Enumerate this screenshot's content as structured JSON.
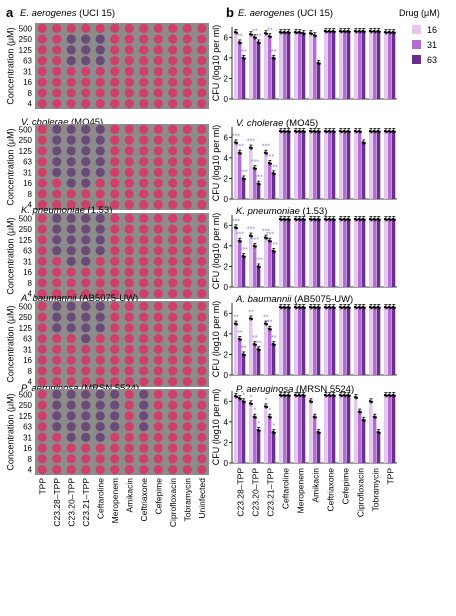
{
  "panel_a_label": "a",
  "panel_b_label": "b",
  "plates": {
    "y_axis_label": "Concentration (μM)",
    "row_labels": [
      "500",
      "250",
      "125",
      "63",
      "31",
      "16",
      "8",
      "4"
    ],
    "column_labels": [
      "TPP",
      "C23.28–TPP",
      "C23.20–TPP",
      "C23.21–TPP",
      "Ceftaroline",
      "Meropenem",
      "Amikacin",
      "Ceftriaxone",
      "Cefepime",
      "Ciprofloxacin",
      "Tobramycin",
      "Uninfected"
    ],
    "colors": {
      "pink": "#cf3f6a",
      "purple": "#6a4a76",
      "plate_bg": "#8e8b8d"
    },
    "panels": [
      {
        "species": "E. aerogenes",
        "strain": "(UCI 15)",
        "grid": [
          "pppppppppppp",
          "ppuuuppppppp",
          "ppuuuppppppp",
          "ppuuuppppppp",
          "pppppppppppp",
          "pppppppppppp",
          "pppppppppppp",
          "pppppppppppp"
        ]
      },
      {
        "species": "V. cholerae",
        "strain": "(MO45)",
        "grid": [
          "puuuuppppppp",
          "puuuuppppppp",
          "puuuuppppppp",
          "puuuuppppppp",
          "puuuuppppppp",
          "ppuupppppppp",
          "pppppppppppp",
          "pppppppppppp"
        ]
      },
      {
        "species": "K. pneumoniae",
        "strain": "(1.53)",
        "grid": [
          "puuuuppppppp",
          "puuuuppppppp",
          "puuuuppppppp",
          "puuuuppppppp",
          "ppuupppppppp",
          "pppppppppppp",
          "pppppppppppp",
          "pppppppppppp"
        ]
      },
      {
        "species": "A. baumannii",
        "strain": "(AB5075-UW)",
        "grid": [
          "puuuuppppppp",
          "puuuuppppppp",
          "puuuuppppppp",
          "pppupppppppp",
          "pppppppppppp",
          "pppppppppppp",
          "pppppppppppp",
          "pppppppppppp"
        ]
      },
      {
        "species": "P. aeruginosa",
        "strain": "(MRSN 5524)",
        "grid": [
          "puuuuupupppp",
          "puuuuupupppp",
          "puuuuupupppp",
          "puuuuupupppp",
          "ppuuuppppppp",
          "pppppppppppp",
          "pppppppppppp",
          "pppppppppppp"
        ]
      }
    ]
  },
  "chart_data": {
    "type": "bar",
    "ylabel": "CFU (log10 per ml)",
    "ylim": [
      0,
      7
    ],
    "yticks": [
      0,
      2,
      4,
      6
    ],
    "categories": [
      "C23.28–TPP",
      "C23.20–TPP",
      "C23.21–TPP",
      "Ceftaroline",
      "Meropenem",
      "Amikacin",
      "Ceftriaxone",
      "Cefepime",
      "Ciprofloxacin",
      "Tobramycin",
      "TPP"
    ],
    "legend": {
      "title": "Drug (μM)",
      "entries": [
        "16",
        "31",
        "63"
      ],
      "position": "top-right"
    },
    "series_colors": [
      "#e3c7ee",
      "#b46bd2",
      "#6a2e8e"
    ],
    "star_color": "#8f7cd6",
    "panels": [
      {
        "species": "E. aerogenes",
        "strain": "(UCI 15)",
        "values": [
          [
            6.5,
            5.5,
            4.0
          ],
          [
            6.3,
            6.0,
            5.5
          ],
          [
            6.4,
            6.1,
            4.0
          ],
          [
            6.5,
            6.5,
            6.5
          ],
          [
            6.5,
            6.5,
            6.4
          ],
          [
            6.4,
            6.2,
            3.5
          ],
          [
            6.6,
            6.6,
            6.6
          ],
          [
            6.6,
            6.6,
            6.6
          ],
          [
            6.6,
            6.6,
            6.6
          ],
          [
            6.6,
            6.6,
            6.6
          ],
          [
            6.5,
            6.5,
            6.5
          ]
        ],
        "stars": [
          "**",
          "**",
          "**"
        ]
      },
      {
        "species": "V. cholerae",
        "strain": "(MO45)",
        "values": [
          [
            5.5,
            4.5,
            2.0
          ],
          [
            5.0,
            3.0,
            1.5
          ],
          [
            4.5,
            3.5,
            2.5
          ],
          [
            6.6,
            6.6,
            6.6
          ],
          [
            6.6,
            6.6,
            6.6
          ],
          [
            6.6,
            6.6,
            6.6
          ],
          [
            6.6,
            6.6,
            6.6
          ],
          [
            6.6,
            6.6,
            6.6
          ],
          [
            6.6,
            6.6,
            5.5
          ],
          [
            6.6,
            6.6,
            6.6
          ],
          [
            6.6,
            6.6,
            6.6
          ]
        ],
        "stars": [
          "***",
          "***",
          "***"
        ]
      },
      {
        "species": "K. pneumoniae",
        "strain": "(1.53)",
        "values": [
          [
            5.8,
            4.5,
            3.0
          ],
          [
            5.0,
            4.0,
            2.0
          ],
          [
            4.8,
            4.5,
            3.5
          ],
          [
            6.6,
            6.6,
            6.6
          ],
          [
            6.6,
            6.6,
            6.6
          ],
          [
            6.6,
            6.6,
            6.6
          ],
          [
            6.6,
            6.6,
            6.6
          ],
          [
            6.6,
            6.6,
            6.6
          ],
          [
            6.6,
            6.6,
            6.6
          ],
          [
            6.6,
            6.6,
            6.6
          ],
          [
            6.6,
            6.6,
            6.6
          ]
        ],
        "stars": [
          "***",
          "***",
          "***"
        ]
      },
      {
        "species": "A. baumannii",
        "strain": "(AB5075-UW)",
        "values": [
          [
            5.0,
            3.5,
            2.0
          ],
          [
            5.5,
            3.0,
            2.5
          ],
          [
            5.0,
            4.5,
            3.0
          ],
          [
            6.6,
            6.6,
            6.6
          ],
          [
            6.6,
            6.6,
            6.6
          ],
          [
            6.6,
            6.6,
            6.6
          ],
          [
            6.6,
            6.6,
            6.6
          ],
          [
            6.6,
            6.6,
            6.6
          ],
          [
            6.6,
            6.6,
            6.6
          ],
          [
            6.6,
            6.6,
            6.6
          ],
          [
            6.6,
            6.6,
            6.6
          ]
        ],
        "stars": [
          "**",
          "**",
          "**"
        ]
      },
      {
        "species": "P. aeruginosa",
        "strain": "(MRSN 5524)",
        "values": [
          [
            6.5,
            6.3,
            6.0
          ],
          [
            5.8,
            4.5,
            3.2
          ],
          [
            5.5,
            4.5,
            3.0
          ],
          [
            6.6,
            6.6,
            6.6
          ],
          [
            6.6,
            6.6,
            6.6
          ],
          [
            6.0,
            4.5,
            3.0
          ],
          [
            6.6,
            6.6,
            6.6
          ],
          [
            6.6,
            6.6,
            6.6
          ],
          [
            6.4,
            5.0,
            4.2
          ],
          [
            6.0,
            4.5,
            3.0
          ],
          [
            6.6,
            6.6,
            6.6
          ]
        ],
        "stars": [
          "*",
          "*",
          "*"
        ]
      }
    ]
  }
}
